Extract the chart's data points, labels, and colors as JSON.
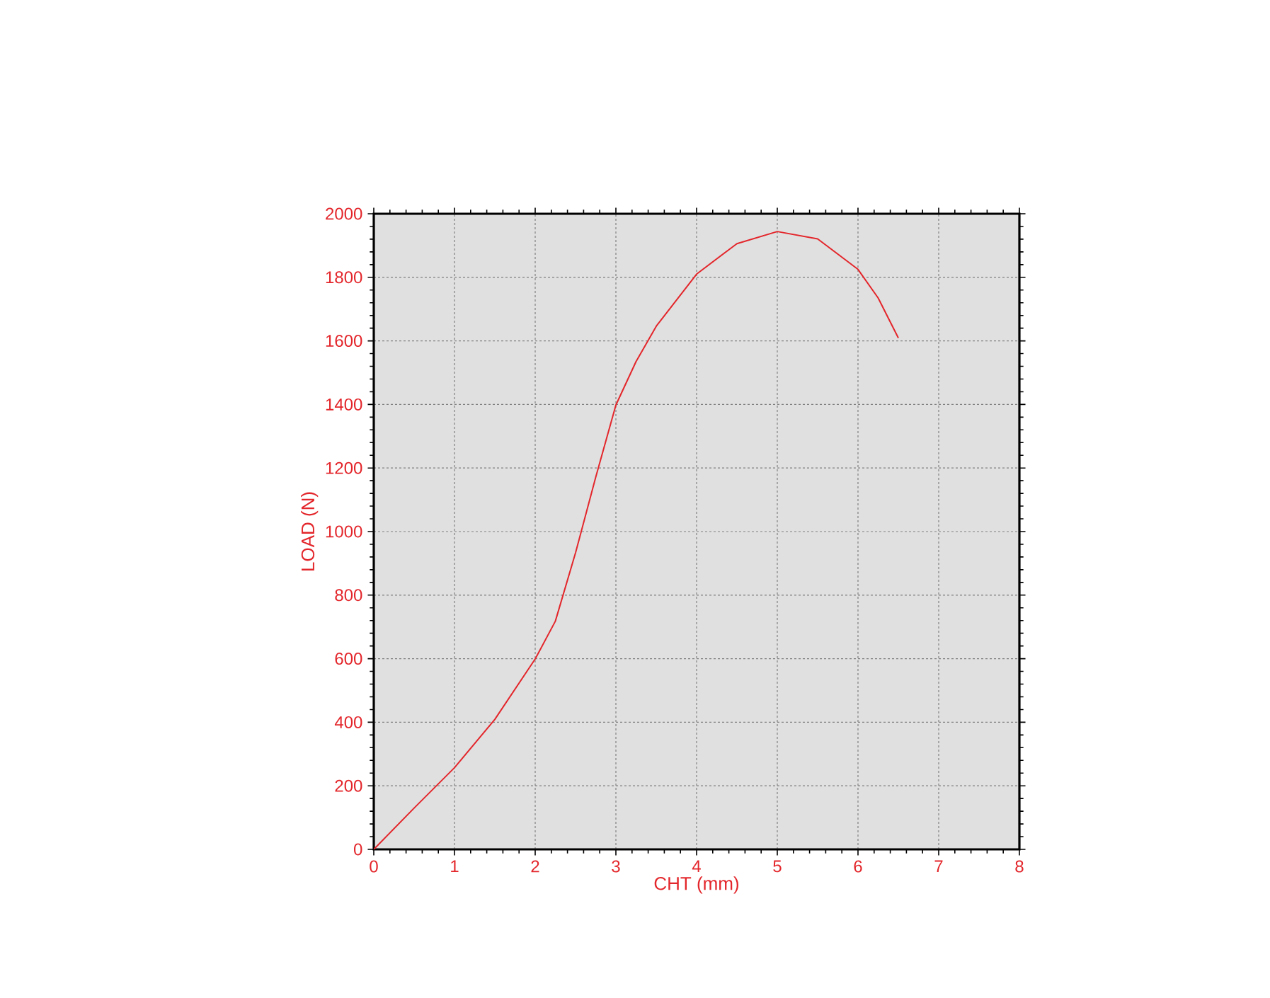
{
  "chart_data": {
    "type": "line",
    "xlabel": "CHT (mm)",
    "ylabel": "LOAD (N)",
    "x": [
      0,
      0.5,
      1,
      1.5,
      2,
      2.25,
      2.5,
      2.75,
      3,
      3.25,
      3.5,
      4,
      4.5,
      5,
      5.5,
      6,
      6.25,
      6.5
    ],
    "series": [
      {
        "color": "#e3262b",
        "values": [
          0,
          130,
          257,
          409,
          599,
          718,
          933,
          1171,
          1398,
          1535,
          1646,
          1810,
          1906,
          1944,
          1921,
          1825,
          1735,
          1609
        ]
      }
    ],
    "xlim": [
      0,
      8
    ],
    "xticks": [
      0,
      1,
      2,
      3,
      4,
      5,
      6,
      7,
      8
    ],
    "ylim": [
      0,
      2000
    ],
    "yticks": [
      0,
      200,
      400,
      600,
      800,
      1000,
      1200,
      1400,
      1600,
      1800,
      2000
    ],
    "grid": true,
    "marker": "none",
    "line_style": "solid"
  }
}
